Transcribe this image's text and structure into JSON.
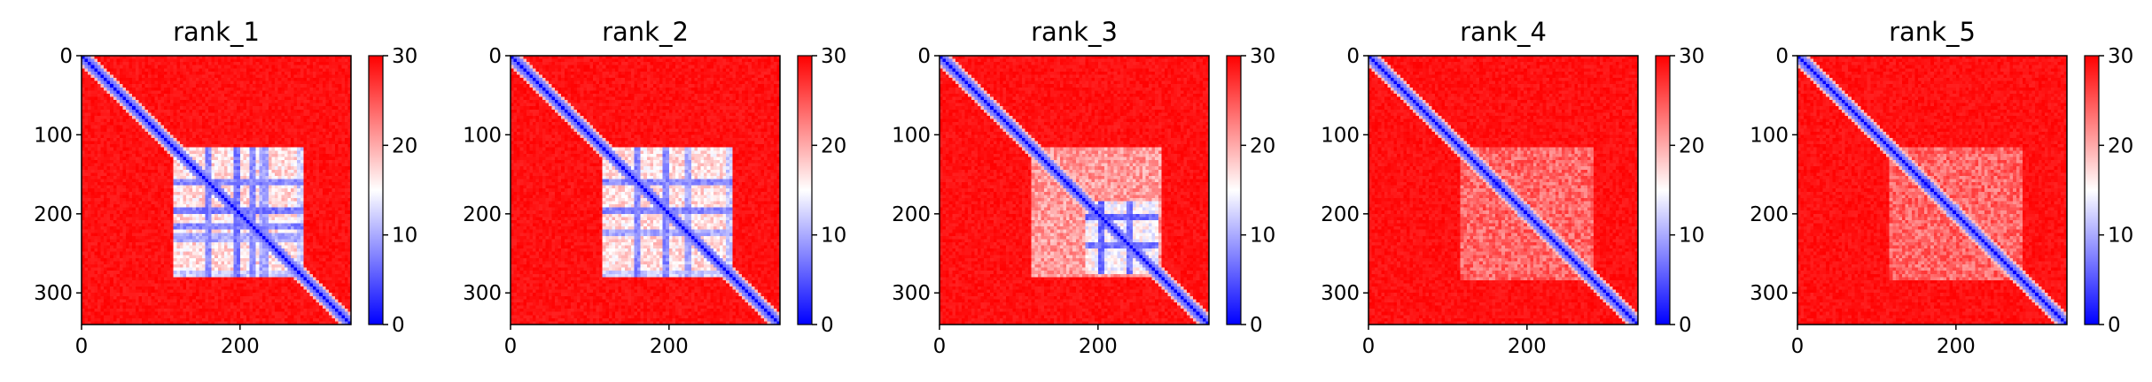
{
  "chart_data": [
    {
      "type": "heatmap",
      "title": "rank_1",
      "matrix_size": 340,
      "xlim": [
        0,
        340
      ],
      "ylim": [
        340,
        0
      ],
      "x_ticks": [
        0,
        200
      ],
      "y_ticks": [
        0,
        100,
        200,
        300
      ],
      "colorbar": {
        "cmap": "bwr",
        "range": [
          0,
          30
        ],
        "ticks": [
          0,
          10,
          20,
          30
        ]
      },
      "diagonal_value": 0,
      "background_value": 30,
      "features": [
        {
          "kind": "block",
          "range": [
            115,
            280
          ],
          "value": 14
        },
        {
          "kind": "band",
          "axis": "row",
          "at": 160,
          "range": [
            115,
            280
          ],
          "value": 6
        },
        {
          "kind": "band",
          "axis": "row",
          "at": 195,
          "range": [
            115,
            280
          ],
          "value": 5
        },
        {
          "kind": "band",
          "axis": "row",
          "at": 215,
          "range": [
            115,
            280
          ],
          "value": 6
        },
        {
          "kind": "band",
          "axis": "row",
          "at": 230,
          "range": [
            115,
            280
          ],
          "value": 8
        },
        {
          "kind": "band",
          "axis": "col",
          "at": 160,
          "range": [
            115,
            280
          ],
          "value": 6
        },
        {
          "kind": "band",
          "axis": "col",
          "at": 195,
          "range": [
            115,
            280
          ],
          "value": 5
        },
        {
          "kind": "band",
          "axis": "col",
          "at": 215,
          "range": [
            115,
            280
          ],
          "value": 6
        },
        {
          "kind": "band",
          "axis": "col",
          "at": 230,
          "range": [
            115,
            280
          ],
          "value": 8
        },
        {
          "kind": "band",
          "axis": "row",
          "at": 275,
          "range": [
            115,
            280
          ],
          "value": 10
        },
        {
          "kind": "band",
          "axis": "col",
          "at": 275,
          "range": [
            115,
            280
          ],
          "value": 10
        }
      ]
    },
    {
      "type": "heatmap",
      "title": "rank_2",
      "matrix_size": 340,
      "xlim": [
        0,
        340
      ],
      "ylim": [
        340,
        0
      ],
      "x_ticks": [
        0,
        200
      ],
      "y_ticks": [
        0,
        100,
        200,
        300
      ],
      "colorbar": {
        "cmap": "bwr",
        "range": [
          0,
          30
        ],
        "ticks": [
          0,
          10,
          20,
          30
        ]
      },
      "diagonal_value": 0,
      "background_value": 30,
      "features": [
        {
          "kind": "block",
          "range": [
            115,
            280
          ],
          "value": 14
        },
        {
          "kind": "band",
          "axis": "row",
          "at": 160,
          "range": [
            115,
            280
          ],
          "value": 6
        },
        {
          "kind": "band",
          "axis": "row",
          "at": 195,
          "range": [
            115,
            280
          ],
          "value": 6
        },
        {
          "kind": "band",
          "axis": "row",
          "at": 225,
          "range": [
            115,
            280
          ],
          "value": 8
        },
        {
          "kind": "band",
          "axis": "col",
          "at": 160,
          "range": [
            115,
            280
          ],
          "value": 6
        },
        {
          "kind": "band",
          "axis": "col",
          "at": 195,
          "range": [
            115,
            280
          ],
          "value": 6
        },
        {
          "kind": "band",
          "axis": "col",
          "at": 225,
          "range": [
            115,
            280
          ],
          "value": 8
        },
        {
          "kind": "band",
          "axis": "row",
          "at": 275,
          "range": [
            115,
            280
          ],
          "value": 10
        },
        {
          "kind": "band",
          "axis": "col",
          "at": 275,
          "range": [
            115,
            280
          ],
          "value": 10
        }
      ]
    },
    {
      "type": "heatmap",
      "title": "rank_3",
      "matrix_size": 340,
      "xlim": [
        0,
        340
      ],
      "ylim": [
        340,
        0
      ],
      "x_ticks": [
        0,
        200
      ],
      "y_ticks": [
        0,
        100,
        200,
        300
      ],
      "colorbar": {
        "cmap": "bwr",
        "range": [
          0,
          30
        ],
        "ticks": [
          0,
          10,
          20,
          30
        ]
      },
      "diagonal_value": 0,
      "background_value": 30,
      "features": [
        {
          "kind": "block",
          "range": [
            115,
            280
          ],
          "value": 18
        },
        {
          "kind": "block",
          "range": [
            185,
            275
          ],
          "value": 12
        },
        {
          "kind": "band",
          "axis": "row",
          "at": 205,
          "range": [
            185,
            275
          ],
          "value": 4
        },
        {
          "kind": "band",
          "axis": "row",
          "at": 240,
          "range": [
            185,
            275
          ],
          "value": 5
        },
        {
          "kind": "band",
          "axis": "col",
          "at": 205,
          "range": [
            185,
            275
          ],
          "value": 4
        },
        {
          "kind": "band",
          "axis": "col",
          "at": 240,
          "range": [
            185,
            275
          ],
          "value": 5
        },
        {
          "kind": "spot",
          "x": 162,
          "y": 162,
          "value": 2
        }
      ]
    },
    {
      "type": "heatmap",
      "title": "rank_4",
      "matrix_size": 340,
      "xlim": [
        0,
        340
      ],
      "ylim": [
        340,
        0
      ],
      "x_ticks": [
        0,
        200
      ],
      "y_ticks": [
        0,
        100,
        200,
        300
      ],
      "colorbar": {
        "cmap": "bwr",
        "range": [
          0,
          30
        ],
        "ticks": [
          0,
          10,
          20,
          30
        ]
      },
      "diagonal_value": 0,
      "background_value": 30,
      "features": [
        {
          "kind": "block",
          "range": [
            115,
            285
          ],
          "value": 21
        },
        {
          "kind": "spot",
          "x": 162,
          "y": 162,
          "value": 1
        },
        {
          "kind": "spot",
          "x": 195,
          "y": 195,
          "value": 4
        }
      ]
    },
    {
      "type": "heatmap",
      "title": "rank_5",
      "matrix_size": 340,
      "xlim": [
        0,
        340
      ],
      "ylim": [
        340,
        0
      ],
      "x_ticks": [
        0,
        200
      ],
      "y_ticks": [
        0,
        100,
        200,
        300
      ],
      "colorbar": {
        "cmap": "bwr",
        "range": [
          0,
          30
        ],
        "ticks": [
          0,
          10,
          20,
          30
        ]
      },
      "diagonal_value": 0,
      "background_value": 30,
      "features": [
        {
          "kind": "block",
          "range": [
            115,
            285
          ],
          "value": 21
        },
        {
          "kind": "spot",
          "x": 162,
          "y": 162,
          "value": 1
        },
        {
          "kind": "spot",
          "x": 195,
          "y": 195,
          "value": 4
        }
      ]
    }
  ]
}
